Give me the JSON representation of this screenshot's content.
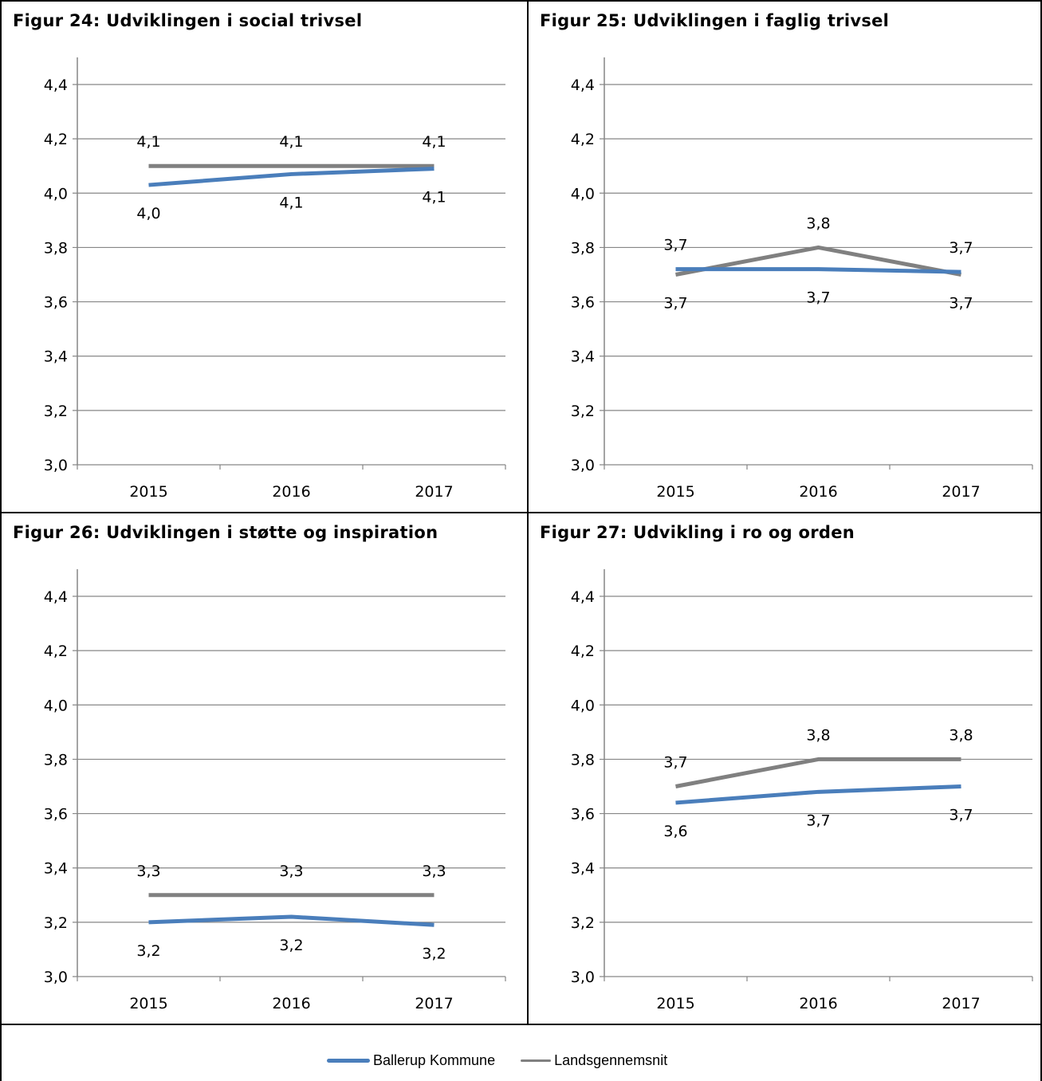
{
  "colors": {
    "ballerup": "#4a7ebb",
    "lands": "#808080",
    "grid": "#868686"
  },
  "legend": {
    "ballerup": "Ballerup Kommune",
    "lands": "Landsgennemsnit"
  },
  "chart_data": [
    {
      "type": "line",
      "title": "Figur 24: Udviklingen i social trivsel",
      "categories": [
        "2015",
        "2016",
        "2017"
      ],
      "ylim": [
        3.0,
        4.4
      ],
      "yticks": [
        "3,0",
        "3,2",
        "3,4",
        "3,6",
        "3,8",
        "4,0",
        "4,2",
        "4,4"
      ],
      "series": [
        {
          "name": "Ballerup Kommune",
          "values": [
            4.03,
            4.07,
            4.09
          ],
          "labels": [
            "4,0",
            "4,1",
            "4,1"
          ]
        },
        {
          "name": "Landsgennemsnit",
          "values": [
            4.1,
            4.1,
            4.1
          ],
          "labels": [
            "4,1",
            "4,1",
            "4,1"
          ]
        }
      ]
    },
    {
      "type": "line",
      "title": "Figur 25: Udviklingen i faglig trivsel",
      "categories": [
        "2015",
        "2016",
        "2017"
      ],
      "ylim": [
        3.0,
        4.4
      ],
      "yticks": [
        "3,0",
        "3,2",
        "3,4",
        "3,6",
        "3,8",
        "4,0",
        "4,2",
        "4,4"
      ],
      "series": [
        {
          "name": "Ballerup Kommune",
          "values": [
            3.72,
            3.72,
            3.71
          ],
          "labels": [
            "3,7",
            "3,7",
            "3,7"
          ]
        },
        {
          "name": "Landsgennemsnit",
          "values": [
            3.7,
            3.8,
            3.7
          ],
          "labels": [
            "3,7",
            "3,8",
            "3,7"
          ]
        }
      ]
    },
    {
      "type": "line",
      "title": "Figur 26: Udviklingen i støtte og inspiration",
      "categories": [
        "2015",
        "2016",
        "2017"
      ],
      "ylim": [
        3.0,
        4.4
      ],
      "yticks": [
        "3,0",
        "3,2",
        "3,4",
        "3,6",
        "3,8",
        "4,0",
        "4,2",
        "4,4"
      ],
      "series": [
        {
          "name": "Ballerup Kommune",
          "values": [
            3.2,
            3.22,
            3.19
          ],
          "labels": [
            "3,2",
            "3,2",
            "3,2"
          ]
        },
        {
          "name": "Landsgennemsnit",
          "values": [
            3.3,
            3.3,
            3.3
          ],
          "labels": [
            "3,3",
            "3,3",
            "3,3"
          ]
        }
      ]
    },
    {
      "type": "line",
      "title": "Figur 27: Udvikling i ro og orden",
      "categories": [
        "2015",
        "2016",
        "2017"
      ],
      "ylim": [
        3.0,
        4.4
      ],
      "yticks": [
        "3,0",
        "3,2",
        "3,4",
        "3,6",
        "3,8",
        "4,0",
        "4,2",
        "4,4"
      ],
      "series": [
        {
          "name": "Ballerup Kommune",
          "values": [
            3.64,
            3.68,
            3.7
          ],
          "labels": [
            "3,6",
            "3,7",
            "3,7"
          ]
        },
        {
          "name": "Landsgennemsnit",
          "values": [
            3.7,
            3.8,
            3.8
          ],
          "labels": [
            "3,7",
            "3,8",
            "3,8"
          ]
        }
      ]
    }
  ]
}
